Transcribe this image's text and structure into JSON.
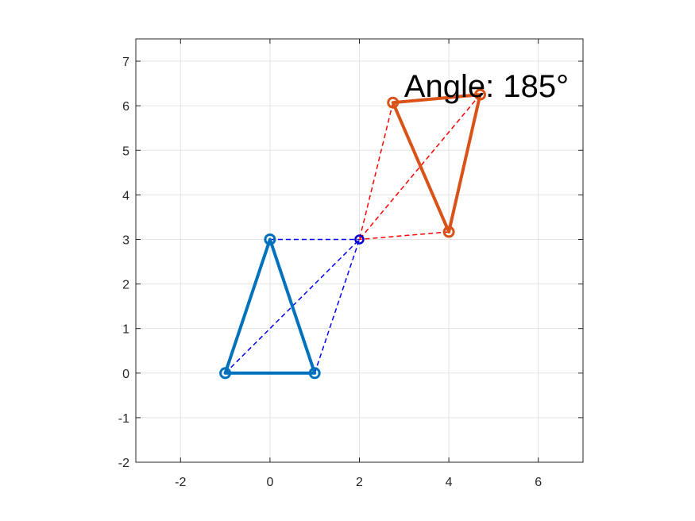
{
  "chart_data": {
    "type": "scatter",
    "title": "",
    "xlabel": "",
    "ylabel": "",
    "xlim": [
      -3,
      7
    ],
    "ylim": [
      -2,
      7.5
    ],
    "x_ticks": [
      -2,
      0,
      2,
      4,
      6
    ],
    "y_ticks": [
      -2,
      -1,
      0,
      1,
      2,
      3,
      4,
      5,
      6,
      7
    ],
    "x_tick_labels": [
      "-2",
      "0",
      "2",
      "4",
      "6"
    ],
    "y_tick_labels": [
      "-2",
      "-1",
      "0",
      "1",
      "2",
      "3",
      "4",
      "5",
      "6",
      "7"
    ],
    "grid": true,
    "legend": "none",
    "annotation": {
      "text": "Angle: 185°",
      "x": 3.0,
      "y": 6.45
    },
    "center": {
      "x": 2,
      "y": 3,
      "color": "#0000cc"
    },
    "series": [
      {
        "role": "original-triangle",
        "color": "#0072bd",
        "closed": true,
        "points": [
          [
            -1,
            0
          ],
          [
            1,
            0
          ],
          [
            0,
            3
          ]
        ]
      },
      {
        "role": "rotated-triangle",
        "color": "#d95319",
        "closed": true,
        "points": [
          [
            4.7,
            6.25
          ],
          [
            2.75,
            6.07
          ],
          [
            4.0,
            3.17
          ]
        ]
      }
    ],
    "connectors": [
      {
        "role": "original-to-center",
        "color": "#0000ff",
        "style": "dashed",
        "points": [
          [
            -1,
            0
          ],
          [
            1,
            0
          ],
          [
            0,
            3
          ]
        ]
      },
      {
        "role": "rotated-to-center",
        "color": "#ff0000",
        "style": "dashed",
        "points": [
          [
            4.7,
            6.25
          ],
          [
            2.75,
            6.07
          ],
          [
            4.0,
            3.17
          ]
        ]
      }
    ]
  }
}
